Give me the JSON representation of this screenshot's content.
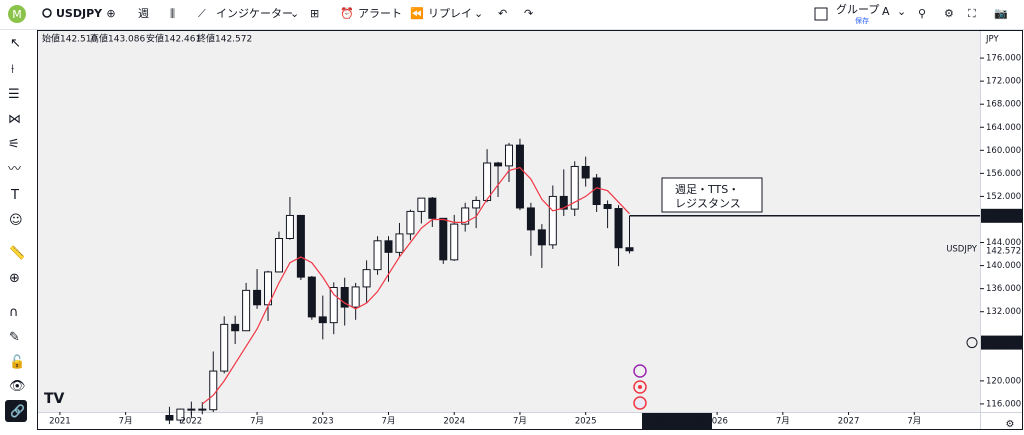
{
  "toolbar": {
    "symbol": "USDJPY",
    "interval": "週",
    "indicators": "インジケーター",
    "alert": "アラート",
    "replay": "リプレイ",
    "group": "グループ",
    "save": "保存",
    "letter": "A"
  },
  "legend": {
    "open": "始値142.510",
    "high": "高値143.086",
    "low": "安値142.461",
    "close": "終値142.572"
  },
  "currency": "JPY",
  "note": [
    "週足・TTS・",
    "レジスタンス"
  ],
  "chart_data": {
    "type": "candlestick",
    "symbol_label": "USDJPY",
    "x": [
      "2021-11",
      "2021-12",
      "2022-01",
      "2022-02",
      "2022-03",
      "2022-04",
      "2022-05",
      "2022-06",
      "2022-07",
      "2022-08",
      "2022-09",
      "2022-10",
      "2022-11",
      "2022-12",
      "2023-01",
      "2023-02",
      "2023-03",
      "2023-04",
      "2023-05",
      "2023-06",
      "2023-07",
      "2023-08",
      "2023-09",
      "2023-10",
      "2023-11",
      "2023-12",
      "2024-01",
      "2024-02",
      "2024-03",
      "2024-04",
      "2024-05",
      "2024-06",
      "2024-07",
      "2024-08",
      "2024-09",
      "2024-10",
      "2024-11",
      "2024-12",
      "2025-01",
      "2025-02",
      "2025-03",
      "2025-04",
      "2025-05"
    ],
    "open": [
      114.0,
      113.2,
      115.1,
      115.1,
      115.0,
      121.7,
      129.8,
      128.7,
      135.7,
      133.2,
      138.9,
      144.7,
      148.7,
      138.0,
      131.1,
      130.1,
      136.2,
      132.8,
      136.3,
      139.3,
      144.3,
      142.3,
      145.5,
      149.4,
      151.7,
      148.2,
      141.0,
      147.2,
      150.0,
      151.3,
      157.8,
      157.3,
      160.9,
      150.0,
      146.2,
      143.6,
      152.0,
      149.8,
      157.2,
      155.2,
      150.6,
      149.9,
      143.1
    ],
    "high": [
      115.5,
      115.2,
      116.4,
      116.3,
      125.1,
      131.2,
      131.3,
      137.0,
      139.4,
      139.1,
      145.9,
      151.9,
      148.8,
      138.2,
      134.8,
      137.1,
      137.9,
      137.0,
      140.9,
      145.1,
      145.1,
      147.4,
      149.7,
      151.7,
      151.9,
      148.2,
      148.8,
      150.9,
      152.0,
      160.2,
      158.0,
      161.3,
      162.0,
      150.9,
      147.2,
      153.9,
      156.7,
      158.1,
      158.9,
      155.9,
      151.3,
      150.5,
      148.6
    ],
    "low": [
      112.5,
      112.6,
      113.5,
      114.2,
      114.6,
      121.3,
      126.4,
      128.7,
      132.5,
      130.4,
      138.8,
      144.5,
      137.5,
      130.6,
      127.2,
      128.1,
      129.6,
      130.6,
      133.5,
      138.4,
      137.2,
      141.5,
      144.4,
      147.3,
      146.7,
      140.3,
      140.8,
      145.9,
      146.5,
      151.0,
      151.9,
      154.5,
      149.6,
      141.7,
      139.6,
      142.9,
      148.6,
      148.6,
      153.7,
      149.3,
      146.5,
      139.9,
      142.1
    ],
    "close": [
      113.2,
      115.1,
      115.1,
      115.0,
      121.7,
      129.8,
      128.7,
      135.7,
      133.2,
      138.9,
      144.7,
      148.7,
      138.0,
      131.1,
      130.1,
      136.2,
      132.8,
      136.3,
      139.3,
      144.3,
      142.3,
      145.5,
      149.4,
      151.7,
      148.2,
      141.0,
      147.2,
      150.0,
      151.3,
      157.8,
      157.3,
      160.9,
      150.0,
      146.2,
      143.6,
      152.0,
      149.8,
      157.2,
      155.2,
      150.6,
      149.9,
      143.1,
      142.572
    ],
    "ma": [
      null,
      null,
      null,
      116,
      117.5,
      120,
      123,
      126,
      129,
      133,
      137,
      140.5,
      141.5,
      140.5,
      138,
      135,
      133.5,
      132.5,
      133.5,
      135.5,
      138.5,
      141.5,
      144,
      146.5,
      148,
      148,
      147.5,
      147.5,
      148.5,
      151.5,
      154,
      156.5,
      157,
      155,
      151.5,
      149.5,
      150,
      151,
      152,
      153.5,
      153,
      151,
      149
    ],
    "candle_color": "#131722",
    "ma_color": "#f23645",
    "hline": 148.637,
    "crosshair_price": 126.641,
    "crosshair_date": "2025-09-01 (月)",
    "xlim": [
      "2020-11",
      "2028-01"
    ],
    "xticks": [
      {
        "value": "2021-01",
        "label": "2021"
      },
      {
        "value": "2021-07",
        "label": "7月"
      },
      {
        "value": "2022-01",
        "label": "2022"
      },
      {
        "value": "2022-07",
        "label": "7月"
      },
      {
        "value": "2023-01",
        "label": "2023"
      },
      {
        "value": "2023-07",
        "label": "7月"
      },
      {
        "value": "2024-01",
        "label": "2024"
      },
      {
        "value": "2024-07",
        "label": "7月"
      },
      {
        "value": "2025-01",
        "label": "2025"
      },
      {
        "value": "2026-01",
        "label": "2026"
      },
      {
        "value": "2026-07",
        "label": "7月"
      },
      {
        "value": "2027-01",
        "label": "2027"
      },
      {
        "value": "2027-07",
        "label": "7月"
      }
    ],
    "ylim": [
      114.6,
      180.7
    ],
    "yticks": [
      {
        "value": 116,
        "label": "116.000"
      },
      {
        "value": 120,
        "label": "120.000"
      },
      {
        "value": 132,
        "label": "132.000"
      },
      {
        "value": 136,
        "label": "136.000"
      },
      {
        "value": 140,
        "label": "140.000"
      },
      {
        "value": 144,
        "label": "144.000"
      },
      {
        "value": 152,
        "label": "152.000"
      },
      {
        "value": 156,
        "label": "156.000"
      },
      {
        "value": 160,
        "label": "160.000"
      },
      {
        "value": 164,
        "label": "164.000"
      },
      {
        "value": 168,
        "label": "168.000"
      },
      {
        "value": 172,
        "label": "172.000"
      },
      {
        "value": 176,
        "label": "176.000"
      }
    ]
  }
}
